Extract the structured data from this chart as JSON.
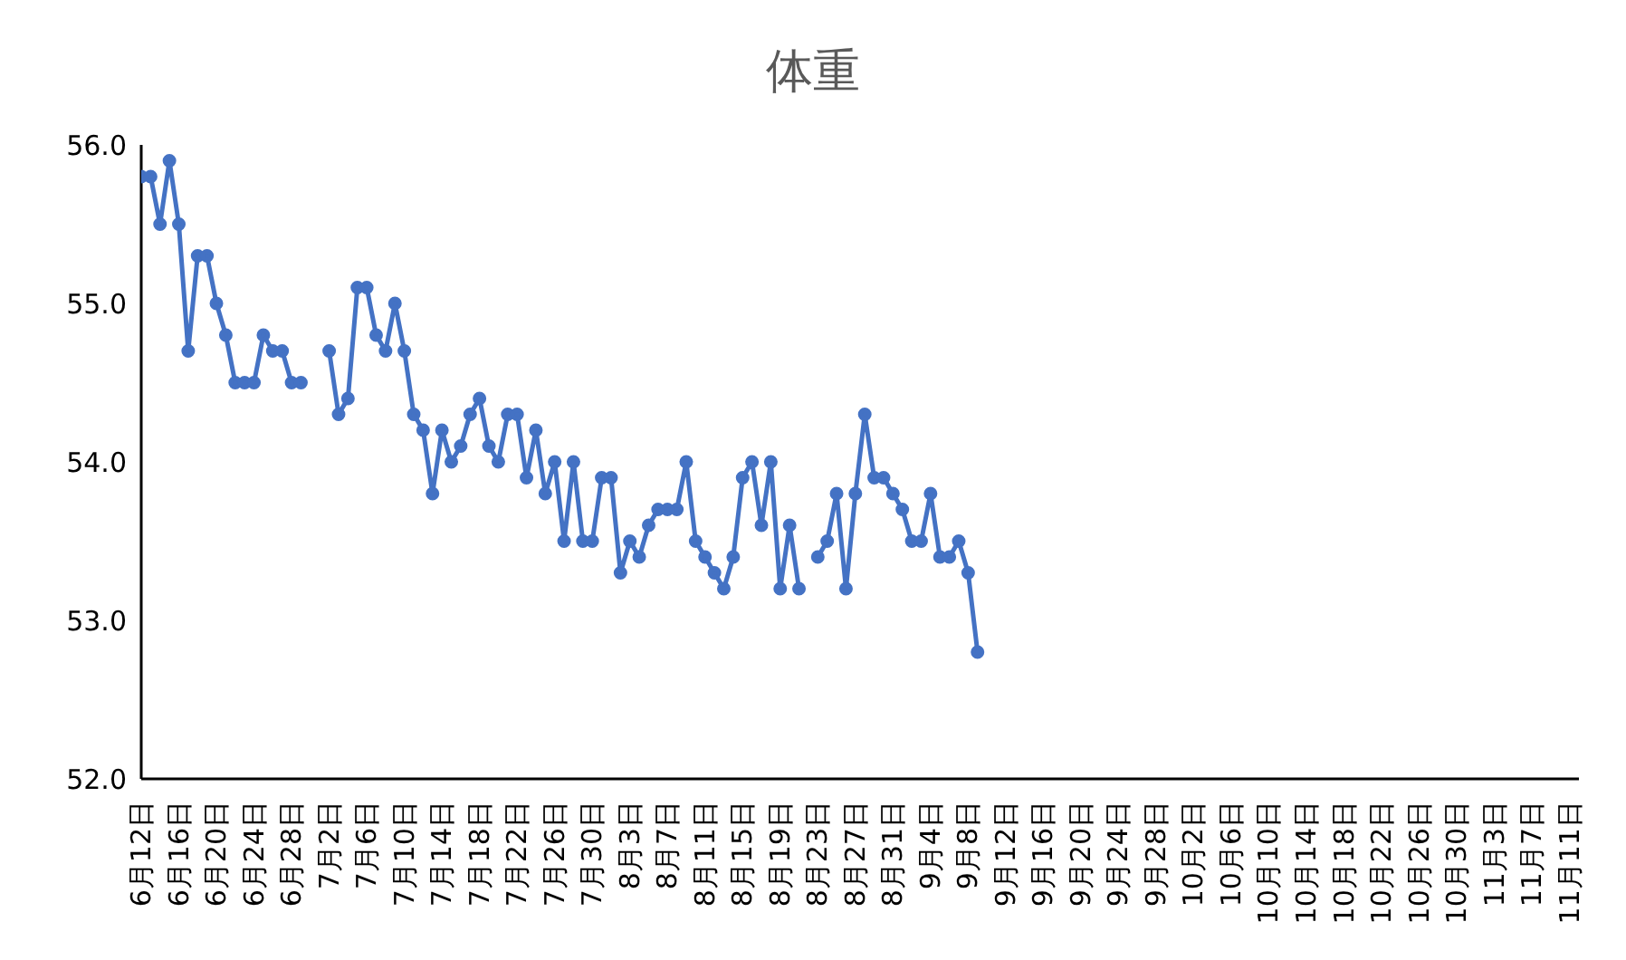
{
  "chart_data": {
    "type": "line",
    "title": "体重",
    "x": [
      "--06-12",
      "--06-13",
      "--06-14",
      "--06-15",
      "--06-16",
      "--06-17",
      "--06-18",
      "--06-19",
      "--06-20",
      "--06-21",
      "--06-22",
      "--06-23",
      "--06-24",
      "--06-25",
      "--06-26",
      "--06-27",
      "--06-28",
      "--06-29",
      "--06-30",
      "--07-01",
      "--07-02",
      "--07-03",
      "--07-04",
      "--07-05",
      "--07-06",
      "--07-07",
      "--07-08",
      "--07-09",
      "--07-10",
      "--07-11",
      "--07-12",
      "--07-13",
      "--07-14",
      "--07-15",
      "--07-16",
      "--07-17",
      "--07-18",
      "--07-19",
      "--07-20",
      "--07-21",
      "--07-22",
      "--07-23",
      "--07-24",
      "--07-25",
      "--07-26",
      "--07-27",
      "--07-28",
      "--07-29",
      "--07-30",
      "--07-31",
      "--08-01",
      "--08-02",
      "--08-03",
      "--08-04",
      "--08-05",
      "--08-06",
      "--08-07",
      "--08-08",
      "--08-09",
      "--08-10",
      "--08-11",
      "--08-12",
      "--08-13",
      "--08-14",
      "--08-15",
      "--08-16",
      "--08-17",
      "--08-18",
      "--08-19",
      "--08-20",
      "--08-21",
      "--08-22",
      "--08-23",
      "--08-24",
      "--08-25",
      "--08-26",
      "--08-27",
      "--08-28",
      "--08-29",
      "--08-30",
      "--08-31",
      "--09-01",
      "--09-02",
      "--09-03",
      "--09-04",
      "--09-05",
      "--09-06",
      "--09-07",
      "--09-08",
      "--09-09"
    ],
    "series": [
      {
        "color": "#4472c4",
        "values": [
          55.8,
          55.8,
          55.5,
          55.9,
          55.5,
          54.7,
          55.3,
          55.3,
          55.0,
          54.8,
          54.5,
          54.5,
          54.5,
          54.8,
          54.7,
          54.7,
          54.5,
          54.5,
          null,
          null,
          54.7,
          54.3,
          54.4,
          55.1,
          55.1,
          54.8,
          54.7,
          55.0,
          54.7,
          54.3,
          54.2,
          53.8,
          54.2,
          54.0,
          54.1,
          54.3,
          54.4,
          54.1,
          54.0,
          54.3,
          54.3,
          53.9,
          54.2,
          53.8,
          54.0,
          53.5,
          54.0,
          53.5,
          53.5,
          53.9,
          53.9,
          53.3,
          53.5,
          53.4,
          53.6,
          53.7,
          53.7,
          53.7,
          54.0,
          53.5,
          53.4,
          53.3,
          53.2,
          53.4,
          53.9,
          54.0,
          53.6,
          54.0,
          53.2,
          53.6,
          53.2,
          null,
          53.4,
          53.5,
          53.8,
          53.2,
          53.8,
          54.3,
          53.9,
          53.9,
          53.8,
          53.7,
          53.5,
          53.5,
          53.8,
          53.4,
          53.4,
          53.5,
          53.3,
          52.8
        ]
      }
    ],
    "xlim": [
      "--06-12",
      "--11-12"
    ],
    "xticks": [
      {
        "value": "--06-12",
        "label": "6月12日"
      },
      {
        "value": "--06-16",
        "label": "6月16日"
      },
      {
        "value": "--06-20",
        "label": "6月20日"
      },
      {
        "value": "--06-24",
        "label": "6月24日"
      },
      {
        "value": "--06-28",
        "label": "6月28日"
      },
      {
        "value": "--07-02",
        "label": "7月2日"
      },
      {
        "value": "--07-06",
        "label": "7月6日"
      },
      {
        "value": "--07-10",
        "label": "7月10日"
      },
      {
        "value": "--07-14",
        "label": "7月14日"
      },
      {
        "value": "--07-18",
        "label": "7月18日"
      },
      {
        "value": "--07-22",
        "label": "7月22日"
      },
      {
        "value": "--07-26",
        "label": "7月26日"
      },
      {
        "value": "--07-30",
        "label": "7月30日"
      },
      {
        "value": "--08-03",
        "label": "8月3日"
      },
      {
        "value": "--08-07",
        "label": "8月7日"
      },
      {
        "value": "--08-11",
        "label": "8月11日"
      },
      {
        "value": "--08-15",
        "label": "8月15日"
      },
      {
        "value": "--08-19",
        "label": "8月19日"
      },
      {
        "value": "--08-23",
        "label": "8月23日"
      },
      {
        "value": "--08-27",
        "label": "8月27日"
      },
      {
        "value": "--08-31",
        "label": "8月31日"
      },
      {
        "value": "--09-04",
        "label": "9月4日"
      },
      {
        "value": "--09-08",
        "label": "9月8日"
      },
      {
        "value": "--09-12",
        "label": "9月12日"
      },
      {
        "value": "--09-16",
        "label": "9月16日"
      },
      {
        "value": "--09-20",
        "label": "9月20日"
      },
      {
        "value": "--09-24",
        "label": "9月24日"
      },
      {
        "value": "--09-28",
        "label": "9月28日"
      },
      {
        "value": "--10-02",
        "label": "10月2日"
      },
      {
        "value": "--10-06",
        "label": "10月6日"
      },
      {
        "value": "--10-10",
        "label": "10月10日"
      },
      {
        "value": "--10-14",
        "label": "10月14日"
      },
      {
        "value": "--10-18",
        "label": "10月18日"
      },
      {
        "value": "--10-22",
        "label": "10月22日"
      },
      {
        "value": "--10-26",
        "label": "10月26日"
      },
      {
        "value": "--10-30",
        "label": "10月30日"
      },
      {
        "value": "--11-03",
        "label": "11月3日"
      },
      {
        "value": "--11-07",
        "label": "11月7日"
      },
      {
        "value": "--11-11",
        "label": "11月11日"
      }
    ],
    "ylim": [
      52,
      56
    ],
    "yticks": [
      {
        "value": 52,
        "label": "52.0"
      },
      {
        "value": 53,
        "label": "53.0"
      },
      {
        "value": 54,
        "label": "54.0"
      },
      {
        "value": 55,
        "label": "55.0"
      },
      {
        "value": 56,
        "label": "56.0"
      }
    ],
    "grid": false,
    "legend": false,
    "marker": "circle",
    "line_style": "solid"
  }
}
